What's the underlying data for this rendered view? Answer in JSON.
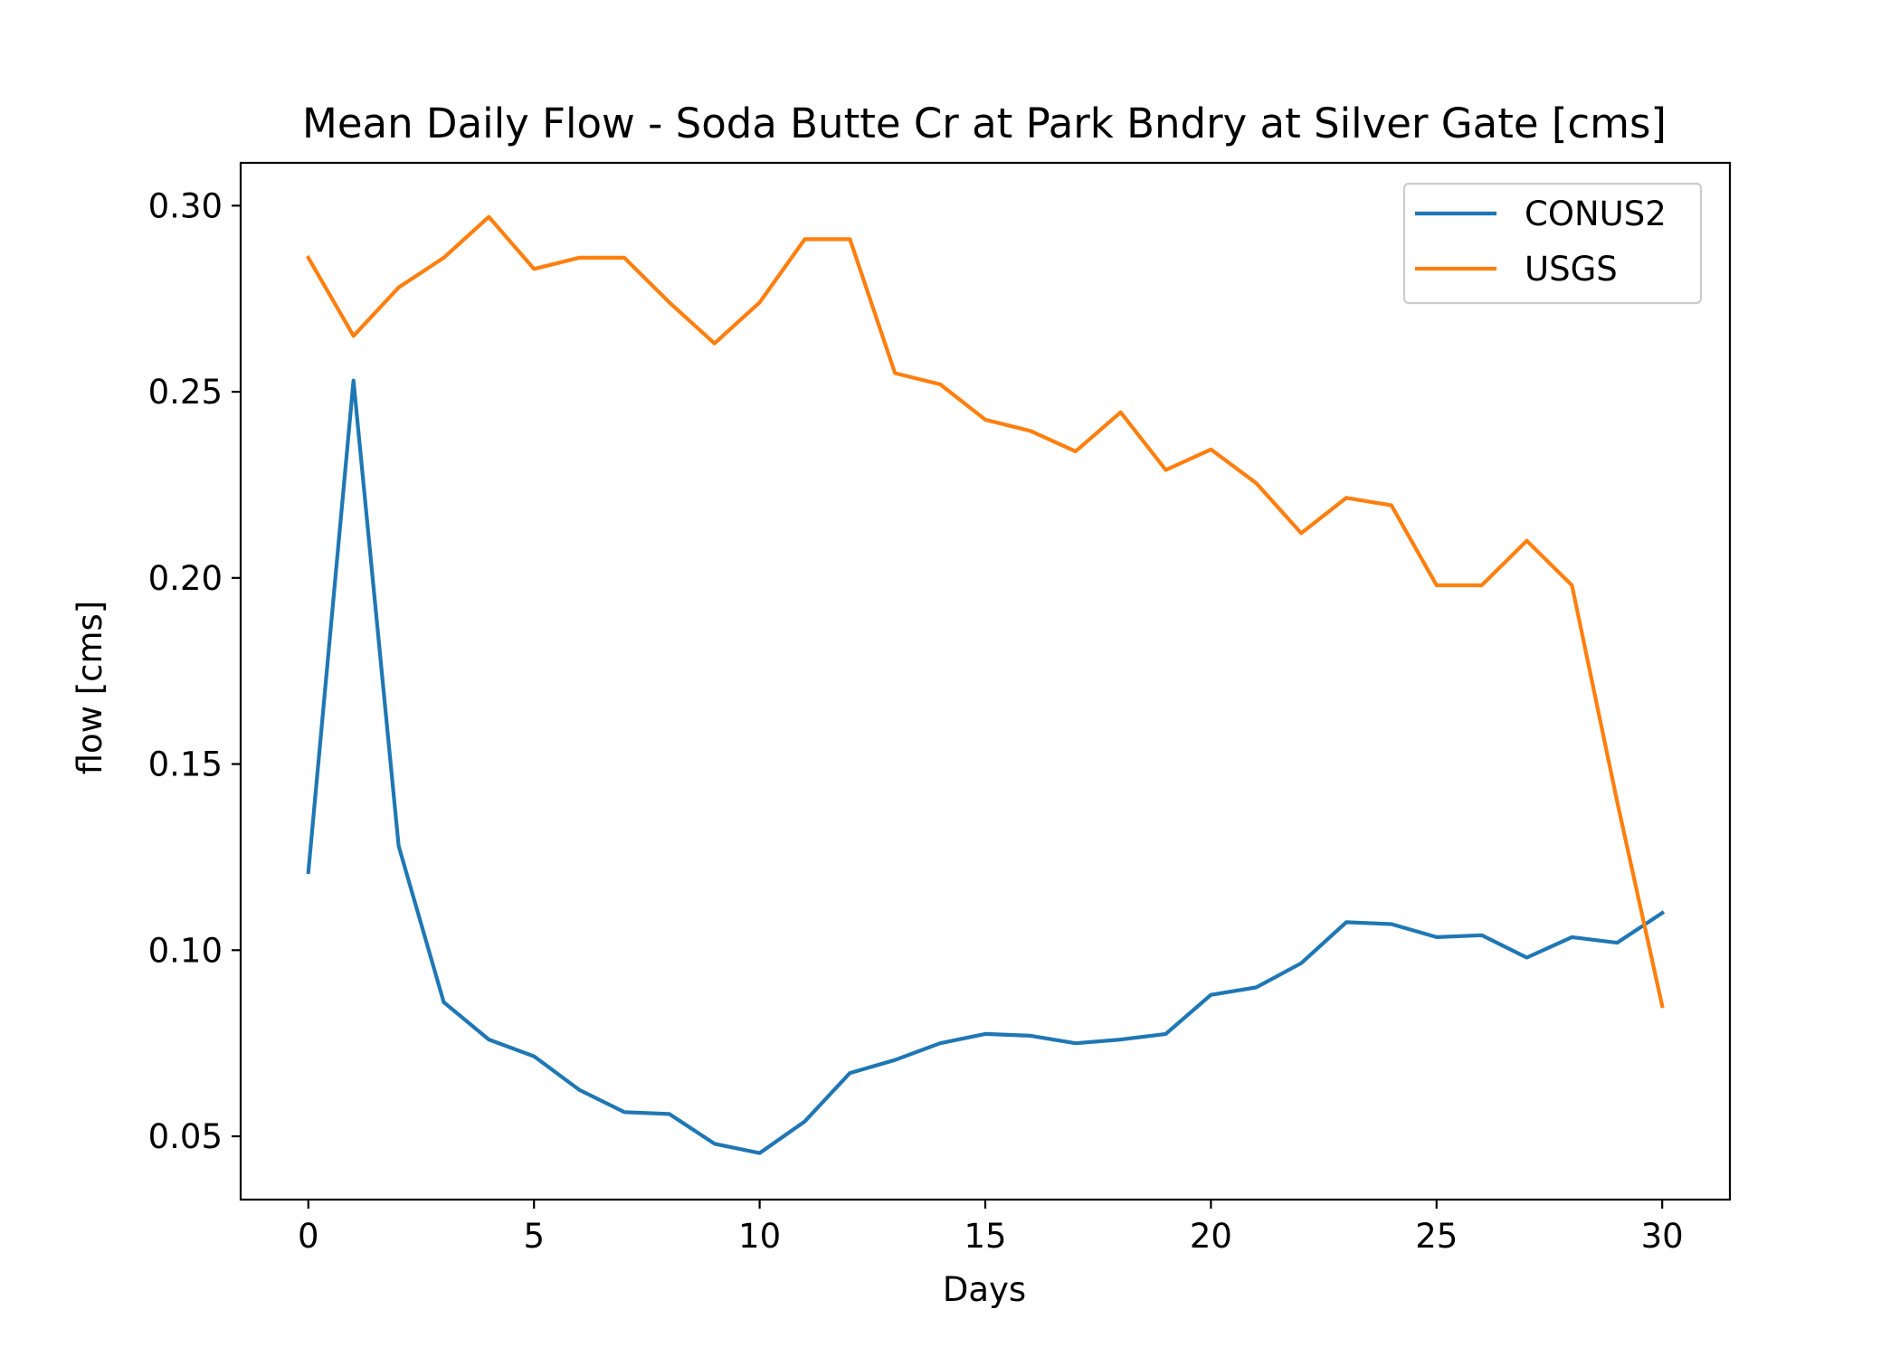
{
  "chart_data": {
    "type": "line",
    "title": "Mean Daily Flow - Soda Butte Cr at Park Bndry at Silver Gate [cms]",
    "xlabel": "Days",
    "ylabel": "flow [cms]",
    "xlim": [
      -1.5,
      31.5
    ],
    "ylim": [
      0.033,
      0.3115
    ],
    "xticks": [
      0,
      5,
      10,
      15,
      20,
      25,
      30
    ],
    "xtick_labels": [
      "0",
      "5",
      "10",
      "15",
      "20",
      "25",
      "30"
    ],
    "yticks": [
      0.05,
      0.1,
      0.15,
      0.2,
      0.25,
      0.3
    ],
    "ytick_labels": [
      "0.05",
      "0.10",
      "0.15",
      "0.20",
      "0.25",
      "0.30"
    ],
    "grid": false,
    "legend_position": "top-right",
    "x": [
      0,
      1,
      2,
      3,
      4,
      5,
      6,
      7,
      8,
      9,
      10,
      11,
      12,
      13,
      14,
      15,
      16,
      17,
      18,
      19,
      20,
      21,
      22,
      23,
      24,
      25,
      26,
      27,
      28,
      29,
      30
    ],
    "series": [
      {
        "name": "CONUS2",
        "color": "#1f77b4",
        "values": [
          0.121,
          0.253,
          0.128,
          0.086,
          0.076,
          0.0715,
          0.0625,
          0.0565,
          0.056,
          0.048,
          0.0455,
          0.054,
          0.067,
          0.0705,
          0.075,
          0.0775,
          0.077,
          0.075,
          0.076,
          0.0775,
          0.088,
          0.09,
          0.0965,
          0.1075,
          0.107,
          0.1035,
          0.104,
          0.098,
          0.1035,
          0.102,
          0.11
        ]
      },
      {
        "name": "USGS",
        "color": "#ff7f0e",
        "values": [
          0.286,
          0.265,
          0.278,
          0.286,
          0.297,
          0.283,
          0.286,
          0.286,
          0.274,
          0.263,
          0.274,
          0.291,
          0.291,
          0.255,
          0.252,
          0.2425,
          0.2395,
          0.234,
          0.2445,
          0.229,
          0.2345,
          0.2255,
          0.212,
          0.2215,
          0.2195,
          0.198,
          0.198,
          0.21,
          0.198,
          0.14,
          0.085
        ]
      }
    ]
  }
}
